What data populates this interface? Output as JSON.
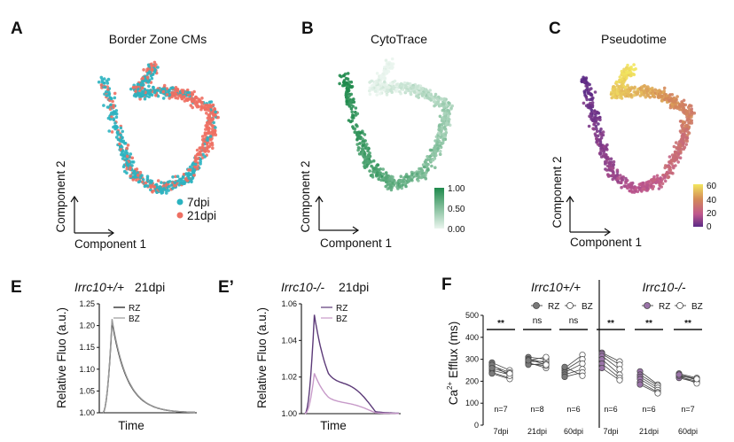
{
  "chart_data": [
    {
      "id": "A",
      "panel_label": "A",
      "type": "scatter",
      "title": "Border Zone CMs",
      "xlabel": "Component 1",
      "ylabel": "Component 2",
      "legend": [
        {
          "name": "7dpi",
          "color": "#2bb3c0"
        },
        {
          "name": "21dpi",
          "color": "#ee6f62"
        }
      ],
      "legend_position": "bottom-right"
    },
    {
      "id": "B",
      "panel_label": "B",
      "type": "scatter",
      "title": "CytoTrace",
      "xlabel": "Component 1",
      "ylabel": "Component 2",
      "colorbar": {
        "ticks": [
          "1.00",
          "0.50",
          "0.00"
        ],
        "colors": [
          "#1f8a4c",
          "#eaf5ee"
        ]
      }
    },
    {
      "id": "C",
      "panel_label": "C",
      "type": "scatter",
      "title": "Pseudotime",
      "xlabel": "Component 1",
      "ylabel": "Component 2",
      "colorbar": {
        "ticks": [
          "60",
          "40",
          "20",
          "0"
        ],
        "colors": [
          "#f2e65e",
          "#d48a58",
          "#c0588d",
          "#5b2a86"
        ]
      }
    },
    {
      "id": "E",
      "panel_label": "E",
      "type": "line",
      "genotype": "Irrc10+/+",
      "timepoint": "21dpi",
      "xlabel": "Time",
      "ylabel": "Relative Fluo (a.u.)",
      "ylim": [
        1.0,
        1.25
      ],
      "yticks": [
        "1.25",
        "1.20",
        "1.15",
        "1.10",
        "1.05",
        "1.00"
      ],
      "series": [
        {
          "name": "RZ",
          "color": "#111111",
          "peak": 1.21
        },
        {
          "name": "BZ",
          "color": "#9a9a9a",
          "peak": 1.215
        }
      ]
    },
    {
      "id": "E2",
      "panel_label": "E’",
      "type": "line",
      "genotype": "Irrc10-/-",
      "timepoint": "21dpi",
      "xlabel": "Time",
      "ylabel": "Relative Fluo (a.u.)",
      "ylim": [
        1.0,
        1.06
      ],
      "yticks": [
        "1.06",
        "1.04",
        "1.02",
        "1.00"
      ],
      "series": [
        {
          "name": "RZ",
          "color": "#5c3a78",
          "peak": 1.054
        },
        {
          "name": "BZ",
          "color": "#c79ac9",
          "peak": 1.022
        }
      ]
    },
    {
      "id": "F",
      "panel_label": "F",
      "type": "scatter",
      "ylabel_main": "Ca",
      "ylabel_sup": "2+",
      "ylabel_rest": " Efflux (ms)",
      "ylim": [
        0,
        500
      ],
      "yticks": [
        "500",
        "400",
        "300",
        "200",
        "100",
        "0"
      ],
      "legend": [
        {
          "name": "RZ"
        },
        {
          "name": "BZ"
        }
      ],
      "genotypes": [
        "Irrc10+/+",
        "Irrc10-/-"
      ],
      "groups": [
        {
          "genotype": "Irrc10+/+",
          "label": "7dpi",
          "n": "n=7",
          "sig": "**",
          "fill": "#7a7a7a",
          "rz": [
            285,
            270,
            250,
            240,
            235,
            275,
            260
          ],
          "bz": [
            250,
            240,
            230,
            215,
            210,
            225,
            235
          ]
        },
        {
          "genotype": "Irrc10+/+",
          "label": "21dpi",
          "n": "n=8",
          "sig": "ns",
          "fill": "#7a7a7a",
          "rz": [
            310,
            300,
            290,
            285,
            280,
            275,
            300,
            295
          ],
          "bz": [
            300,
            285,
            290,
            260,
            270,
            280,
            275,
            310
          ]
        },
        {
          "genotype": "Irrc10+/+",
          "label": "60dpi",
          "n": "n=6",
          "sig": "ns",
          "fill": "#7a7a7a",
          "rz": [
            260,
            250,
            240,
            230,
            220,
            265
          ],
          "bz": [
            320,
            300,
            280,
            255,
            240,
            225
          ]
        },
        {
          "genotype": "Irrc10-/-",
          "label": "7dpi",
          "n": "n=6",
          "sig": "**",
          "fill": "#9a73a8",
          "rz": [
            330,
            325,
            315,
            300,
            280,
            260
          ],
          "bz": [
            290,
            275,
            255,
            230,
            215,
            205
          ]
        },
        {
          "genotype": "Irrc10-/-",
          "label": "21dpi",
          "n": "n=6",
          "sig": "**",
          "fill": "#9a73a8",
          "rz": [
            245,
            230,
            220,
            210,
            195,
            185
          ],
          "bz": [
            185,
            180,
            170,
            160,
            150,
            145
          ]
        },
        {
          "genotype": "Irrc10-/-",
          "label": "60dpi",
          "n": "n=7",
          "sig": "**",
          "fill": "#9a73a8",
          "rz": [
            235,
            230,
            225,
            220,
            215,
            225,
            230
          ],
          "bz": [
            215,
            205,
            210,
            200,
            195,
            190,
            210
          ]
        }
      ]
    }
  ]
}
